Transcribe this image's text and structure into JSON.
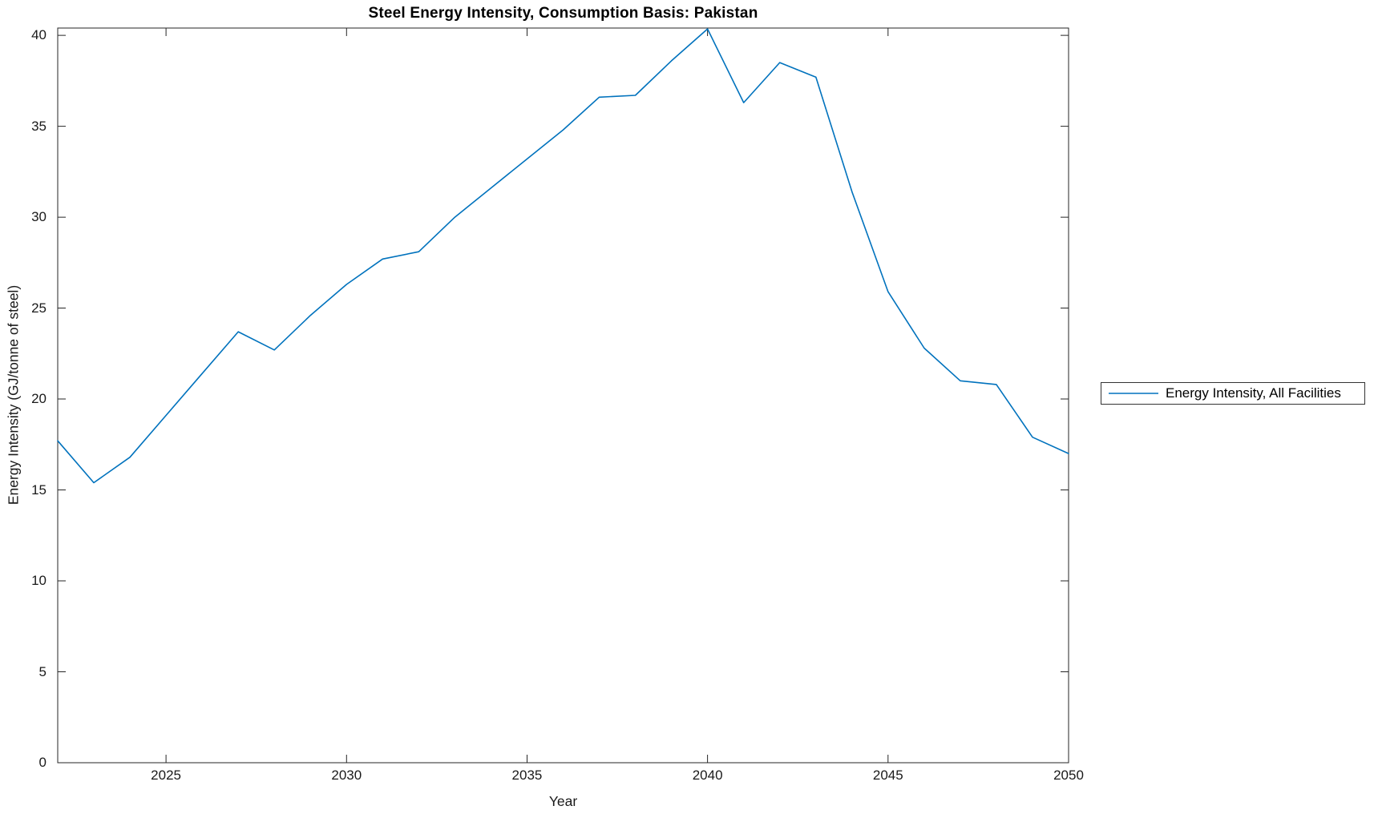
{
  "chart_data": {
    "type": "line",
    "title": "Steel Energy Intensity, Consumption Basis: Pakistan",
    "xlabel": "Year",
    "ylabel": "Energy Intensity (GJ/tonne of steel)",
    "xlim": [
      2022,
      2050
    ],
    "ylim": [
      0,
      40.4
    ],
    "xticks": [
      2025,
      2030,
      2035,
      2040,
      2045,
      2050
    ],
    "yticks": [
      0,
      5,
      10,
      15,
      20,
      25,
      30,
      35,
      40
    ],
    "grid": false,
    "box": true,
    "legend": {
      "position": "outside-right",
      "entries": [
        "Energy Intensity, All Facilities"
      ]
    },
    "colors": {
      "line": "#0072BD",
      "axis": "#262626"
    },
    "series": [
      {
        "name": "Energy Intensity, All Facilities",
        "color": "#0072BD",
        "x": [
          2022,
          2023,
          2024,
          2025,
          2026,
          2027,
          2028,
          2029,
          2030,
          2031,
          2032,
          2033,
          2034,
          2035,
          2036,
          2037,
          2038,
          2039,
          2040,
          2041,
          2042,
          2043,
          2044,
          2045,
          2046,
          2047,
          2048,
          2049,
          2050
        ],
        "values": [
          17.7,
          15.4,
          16.8,
          19.1,
          21.4,
          23.7,
          22.7,
          24.6,
          26.3,
          27.7,
          28.1,
          30.0,
          31.6,
          33.2,
          34.8,
          36.6,
          36.7,
          38.6,
          40.35,
          36.3,
          38.5,
          37.7,
          31.4,
          25.9,
          22.8,
          21.0,
          20.8,
          17.9,
          17.0
        ]
      }
    ]
  }
}
